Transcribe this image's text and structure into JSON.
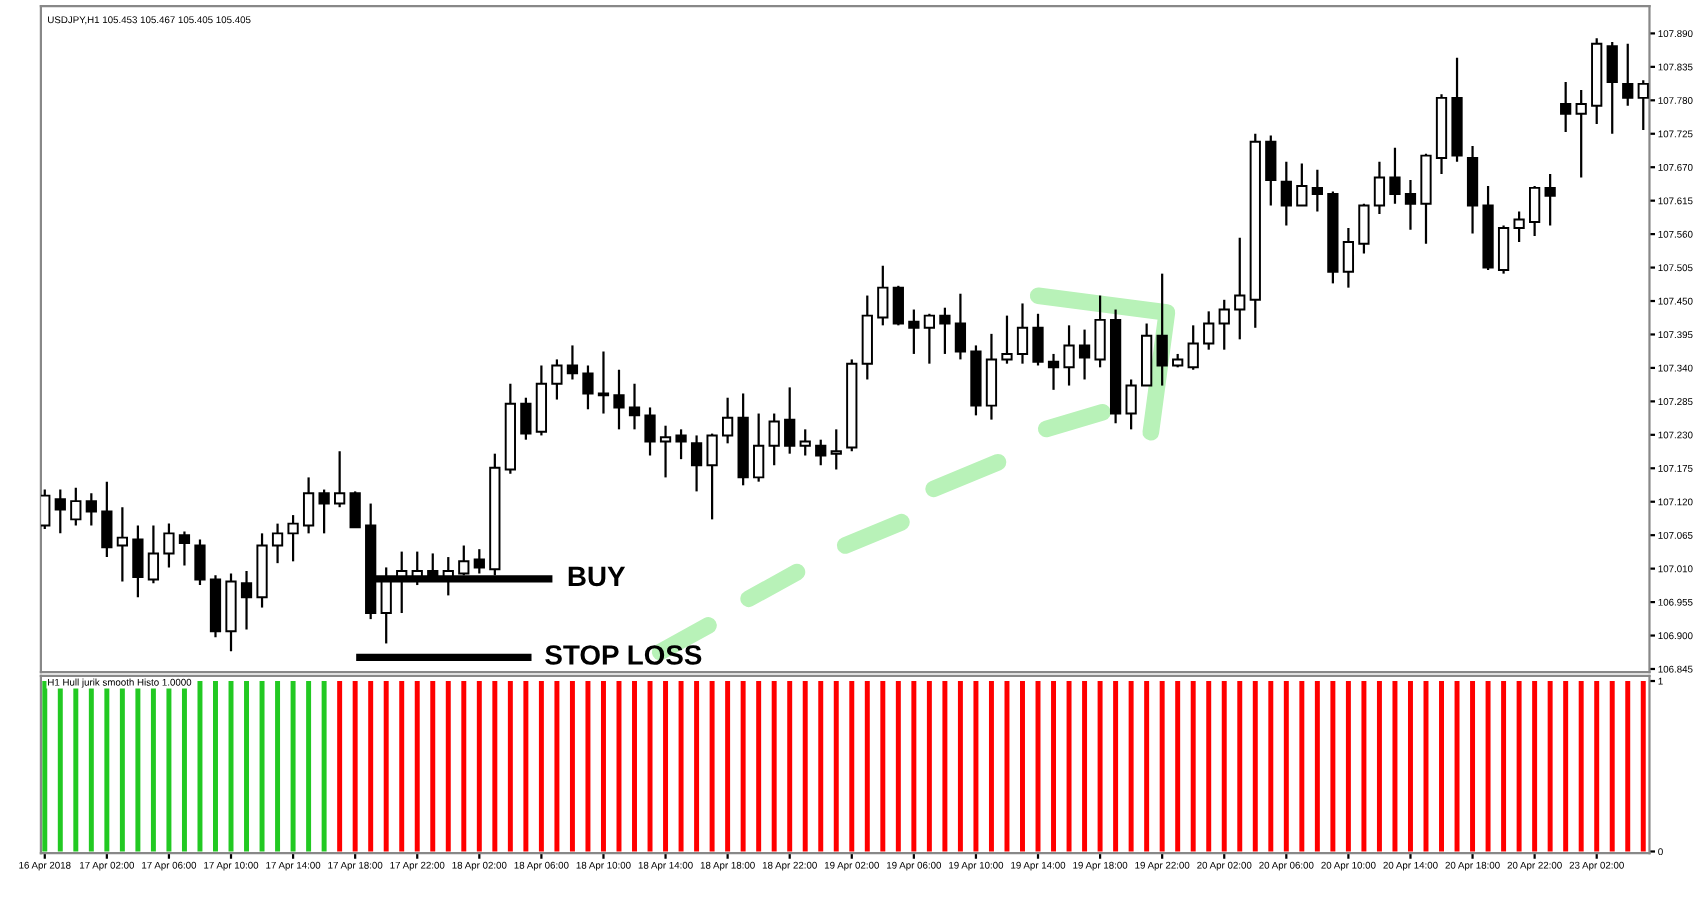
{
  "chart_data": [
    {
      "type": "candlestick",
      "ohlc": [
        [
          107.081,
          107.14,
          107.075,
          107.13
        ],
        [
          107.124,
          107.14,
          107.068,
          107.107
        ],
        [
          107.091,
          107.143,
          107.081,
          107.121
        ],
        [
          107.121,
          107.134,
          107.081,
          107.104
        ],
        [
          107.104,
          107.153,
          107.029,
          107.045
        ],
        [
          107.048,
          107.111,
          106.989,
          107.061
        ],
        [
          107.058,
          107.081,
          106.963,
          106.996
        ],
        [
          106.992,
          107.081,
          106.986,
          107.035
        ],
        [
          107.035,
          107.084,
          107.012,
          107.068
        ],
        [
          107.065,
          107.071,
          107.015,
          107.052
        ],
        [
          107.048,
          107.058,
          106.983,
          106.992
        ],
        [
          106.992,
          106.999,
          106.897,
          106.907
        ],
        [
          106.907,
          107.002,
          106.874,
          106.989
        ],
        [
          106.986,
          107.006,
          106.91,
          106.963
        ],
        [
          106.963,
          107.068,
          106.946,
          107.048
        ],
        [
          107.048,
          107.084,
          107.019,
          107.068
        ],
        [
          107.068,
          107.098,
          107.022,
          107.084
        ],
        [
          107.081,
          107.16,
          107.068,
          107.134
        ],
        [
          107.134,
          107.14,
          107.068,
          107.117
        ],
        [
          107.117,
          107.203,
          107.111,
          107.134
        ],
        [
          107.134,
          107.137,
          107.078,
          107.078
        ],
        [
          107.081,
          107.117,
          106.927,
          106.937
        ],
        [
          106.937,
          107.012,
          106.887,
          106.992
        ],
        [
          106.992,
          107.038,
          106.937,
          107.006
        ],
        [
          106.996,
          107.038,
          106.983,
          107.006
        ],
        [
          107.006,
          107.035,
          106.992,
          106.996
        ],
        [
          106.992,
          107.029,
          106.966,
          107.006
        ],
        [
          107.002,
          107.048,
          106.999,
          107.022
        ],
        [
          107.025,
          107.042,
          107.002,
          107.012
        ],
        [
          107.009,
          107.199,
          106.999,
          107.176
        ],
        [
          107.173,
          107.314,
          107.166,
          107.281
        ],
        [
          107.281,
          107.291,
          107.222,
          107.232
        ],
        [
          107.235,
          107.344,
          107.229,
          107.314
        ],
        [
          107.314,
          107.354,
          107.288,
          107.344
        ],
        [
          107.344,
          107.377,
          107.321,
          107.331
        ],
        [
          107.331,
          107.344,
          107.272,
          107.298
        ],
        [
          107.298,
          107.367,
          107.265,
          107.295
        ],
        [
          107.295,
          107.337,
          107.239,
          107.275
        ],
        [
          107.275,
          107.314,
          107.239,
          107.262
        ],
        [
          107.262,
          107.275,
          107.196,
          107.219
        ],
        [
          107.219,
          107.245,
          107.16,
          107.226
        ],
        [
          107.229,
          107.239,
          107.19,
          107.219
        ],
        [
          107.216,
          107.229,
          107.137,
          107.18
        ],
        [
          107.18,
          107.232,
          107.091,
          107.229
        ],
        [
          107.229,
          107.291,
          107.216,
          107.258
        ],
        [
          107.258,
          107.298,
          107.147,
          107.16
        ],
        [
          107.16,
          107.265,
          107.153,
          107.212
        ],
        [
          107.212,
          107.265,
          107.18,
          107.252
        ],
        [
          107.255,
          107.308,
          107.199,
          107.212
        ],
        [
          107.212,
          107.239,
          107.196,
          107.219
        ],
        [
          107.212,
          107.222,
          107.18,
          107.196
        ],
        [
          107.199,
          107.239,
          107.173,
          107.203
        ],
        [
          107.209,
          107.354,
          107.203,
          107.347
        ],
        [
          107.347,
          107.459,
          107.321,
          107.426
        ],
        [
          107.423,
          107.508,
          107.41,
          107.472
        ],
        [
          107.472,
          107.475,
          107.41,
          107.413
        ],
        [
          107.416,
          107.436,
          107.363,
          107.406
        ],
        [
          107.406,
          107.429,
          107.347,
          107.426
        ],
        [
          107.426,
          107.439,
          107.363,
          107.413
        ],
        [
          107.413,
          107.462,
          107.354,
          107.367
        ],
        [
          107.367,
          107.377,
          107.262,
          107.278
        ],
        [
          107.278,
          107.396,
          107.255,
          107.354
        ],
        [
          107.354,
          107.426,
          107.347,
          107.363
        ],
        [
          107.363,
          107.446,
          107.347,
          107.406
        ],
        [
          107.406,
          107.429,
          107.344,
          107.35
        ],
        [
          107.35,
          107.363,
          107.304,
          107.341
        ],
        [
          107.341,
          107.41,
          107.311,
          107.377
        ],
        [
          107.377,
          107.403,
          107.321,
          107.357
        ],
        [
          107.354,
          107.459,
          107.341,
          107.419
        ],
        [
          107.419,
          107.436,
          107.249,
          107.265
        ],
        [
          107.265,
          107.321,
          107.239,
          107.311
        ],
        [
          107.311,
          107.413,
          107.311,
          107.393
        ],
        [
          107.393,
          107.495,
          107.311,
          107.344
        ],
        [
          107.344,
          107.363,
          107.341,
          107.354
        ],
        [
          107.341,
          107.41,
          107.337,
          107.38
        ],
        [
          107.38,
          107.433,
          107.37,
          107.413
        ],
        [
          107.413,
          107.452,
          107.37,
          107.436
        ],
        [
          107.436,
          107.554,
          107.387,
          107.459
        ],
        [
          107.452,
          107.725,
          107.406,
          107.712
        ],
        [
          107.712,
          107.722,
          107.607,
          107.649
        ],
        [
          107.646,
          107.679,
          107.574,
          107.607
        ],
        [
          107.607,
          107.676,
          107.607,
          107.639
        ],
        [
          107.636,
          107.666,
          107.597,
          107.626
        ],
        [
          107.626,
          107.63,
          107.479,
          107.498
        ],
        [
          107.498,
          107.57,
          107.472,
          107.547
        ],
        [
          107.544,
          107.61,
          107.528,
          107.607
        ],
        [
          107.607,
          107.679,
          107.593,
          107.653
        ],
        [
          107.653,
          107.702,
          107.61,
          107.626
        ],
        [
          107.626,
          107.649,
          107.567,
          107.61
        ],
        [
          107.61,
          107.692,
          107.544,
          107.689
        ],
        [
          107.685,
          107.79,
          107.659,
          107.784
        ],
        [
          107.784,
          107.85,
          107.679,
          107.689
        ],
        [
          107.685,
          107.705,
          107.561,
          107.607
        ],
        [
          107.607,
          107.639,
          107.501,
          107.505
        ],
        [
          107.501,
          107.574,
          107.495,
          107.57
        ],
        [
          107.57,
          107.597,
          107.547,
          107.584
        ],
        [
          107.58,
          107.639,
          107.557,
          107.636
        ],
        [
          107.636,
          107.659,
          107.574,
          107.623
        ],
        [
          107.774,
          107.81,
          107.728,
          107.758
        ],
        [
          107.758,
          107.797,
          107.653,
          107.774
        ],
        [
          107.771,
          107.882,
          107.741,
          107.873
        ],
        [
          107.869,
          107.876,
          107.725,
          107.81
        ],
        [
          107.807,
          107.873,
          107.771,
          107.784
        ],
        [
          107.784,
          107.813,
          107.731,
          107.807
        ]
      ],
      "ylim": [
        106.84,
        107.935
      ],
      "yticks": [
        {
          "value": 107.89,
          "label": "107.890"
        },
        {
          "value": 107.835,
          "label": "107.835"
        },
        {
          "value": 107.78,
          "label": "107.780"
        },
        {
          "value": 107.725,
          "label": "107.725"
        },
        {
          "value": 107.67,
          "label": "107.670"
        },
        {
          "value": 107.615,
          "label": "107.615"
        },
        {
          "value": 107.56,
          "label": "107.560"
        },
        {
          "value": 107.505,
          "label": "107.505"
        },
        {
          "value": 107.45,
          "label": "107.450"
        },
        {
          "value": 107.395,
          "label": "107.395"
        },
        {
          "value": 107.34,
          "label": "107.340"
        },
        {
          "value": 107.285,
          "label": "107.285"
        },
        {
          "value": 107.23,
          "label": "107.230"
        },
        {
          "value": 107.175,
          "label": "107.175"
        },
        {
          "value": 107.12,
          "label": "107.120"
        },
        {
          "value": 107.065,
          "label": "107.065"
        },
        {
          "value": 107.01,
          "label": "107.010"
        },
        {
          "value": 106.955,
          "label": "106.955"
        },
        {
          "value": 106.9,
          "label": "106.900"
        },
        {
          "value": 106.845,
          "label": "106.845"
        }
      ],
      "tick_labels": "y",
      "annotations": [
        "USDJPY,H1 105.453 105.467 105.405 105.405",
        "BUY",
        "STOP LOSS"
      ]
    },
    {
      "type": "bar",
      "categories": [
        "16 Apr 2018",
        null,
        null,
        null,
        "17 Apr 02:00",
        null,
        null,
        null,
        "17 Apr 06:00",
        null,
        null,
        null,
        "17 Apr 10:00",
        null,
        null,
        null,
        "17 Apr 14:00",
        null,
        null,
        null,
        "17 Apr 18:00",
        null,
        null,
        null,
        "17 Apr 22:00",
        null,
        null,
        null,
        "18 Apr 02:00",
        null,
        null,
        null,
        "18 Apr 06:00",
        null,
        null,
        null,
        "18 Apr 10:00",
        null,
        null,
        null,
        "18 Apr 14:00",
        null,
        null,
        null,
        "18 Apr 18:00",
        null,
        null,
        null,
        "18 Apr 22:00",
        null,
        null,
        null,
        "19 Apr 02:00",
        null,
        null,
        null,
        "19 Apr 06:00",
        null,
        null,
        null,
        "19 Apr 10:00",
        null,
        null,
        null,
        "19 Apr 14:00",
        null,
        null,
        null,
        "19 Apr 18:00",
        null,
        null,
        null,
        "19 Apr 22:00",
        null,
        null,
        null,
        "20 Apr 02:00",
        null,
        null,
        null,
        "20 Apr 06:00",
        null,
        null,
        null,
        "20 Apr 10:00",
        null,
        null,
        null,
        "20 Apr 14:00",
        null,
        null,
        null,
        "20 Apr 18:00",
        null,
        null,
        null,
        "20 Apr 22:00",
        null,
        null,
        null,
        "23 Apr 02:00",
        null,
        null,
        null
      ],
      "values": [
        1,
        1,
        1,
        1,
        1,
        1,
        1,
        1,
        1,
        1,
        1,
        1,
        1,
        1,
        1,
        1,
        1,
        1,
        1,
        1,
        1,
        1,
        1,
        1,
        1,
        1,
        1,
        1,
        1,
        1,
        1,
        1,
        1,
        1,
        1,
        1,
        1,
        1,
        1,
        1,
        1,
        1,
        1,
        1,
        1,
        1,
        1,
        1,
        1,
        1,
        1,
        1,
        1,
        1,
        1,
        1,
        1,
        1,
        1,
        1,
        1,
        1,
        1,
        1,
        1,
        1,
        1,
        1,
        1,
        1,
        1,
        1,
        1,
        1,
        1,
        1,
        1,
        1,
        1,
        1,
        1,
        1,
        1,
        1,
        1,
        1,
        1,
        1,
        1,
        1,
        1,
        1,
        1,
        1,
        1,
        1,
        1,
        1,
        1,
        1,
        1,
        1,
        1,
        1
      ],
      "colors": [
        "#22c922",
        "#22c922",
        "#22c922",
        "#22c922",
        "#22c922",
        "#22c922",
        "#22c922",
        "#22c922",
        "#22c922",
        "#22c922",
        "#22c922",
        "#22c922",
        "#22c922",
        "#22c922",
        "#22c922",
        "#22c922",
        "#22c922",
        "#22c922",
        "#22c922",
        "#ff0000",
        "#ff0000",
        "#ff0000",
        "#ff0000",
        "#ff0000",
        "#ff0000",
        "#ff0000",
        "#ff0000",
        "#ff0000",
        "#ff0000",
        "#ff0000",
        "#ff0000",
        "#ff0000",
        "#ff0000",
        "#ff0000",
        "#ff0000",
        "#ff0000",
        "#ff0000",
        "#ff0000",
        "#ff0000",
        "#ff0000",
        "#ff0000",
        "#ff0000",
        "#ff0000",
        "#ff0000",
        "#ff0000",
        "#ff0000",
        "#ff0000",
        "#ff0000",
        "#ff0000",
        "#ff0000",
        "#ff0000",
        "#ff0000",
        "#ff0000",
        "#ff0000",
        "#ff0000",
        "#ff0000",
        "#ff0000",
        "#ff0000",
        "#ff0000",
        "#ff0000",
        "#ff0000",
        "#ff0000",
        "#ff0000",
        "#ff0000",
        "#ff0000",
        "#ff0000",
        "#ff0000",
        "#ff0000",
        "#ff0000",
        "#ff0000",
        "#ff0000",
        "#ff0000",
        "#ff0000",
        "#ff0000",
        "#ff0000",
        "#ff0000",
        "#ff0000",
        "#ff0000",
        "#ff0000",
        "#ff0000",
        "#ff0000",
        "#ff0000",
        "#ff0000",
        "#ff0000",
        "#ff0000",
        "#ff0000",
        "#ff0000",
        "#ff0000",
        "#ff0000",
        "#ff0000",
        "#ff0000",
        "#ff0000",
        "#ff0000",
        "#ff0000",
        "#ff0000",
        "#ff0000",
        "#ff0000",
        "#ff0000",
        "#ff0000",
        "#ff0000",
        "#ff0000",
        "#ff0000",
        "#ff0000",
        "#ff0000"
      ],
      "ylim": [
        -0.01,
        1.03
      ],
      "yticks": [
        0,
        1
      ],
      "annotations": [
        "H1 Hull jurik smooth Histo 1.0000"
      ]
    }
  ]
}
